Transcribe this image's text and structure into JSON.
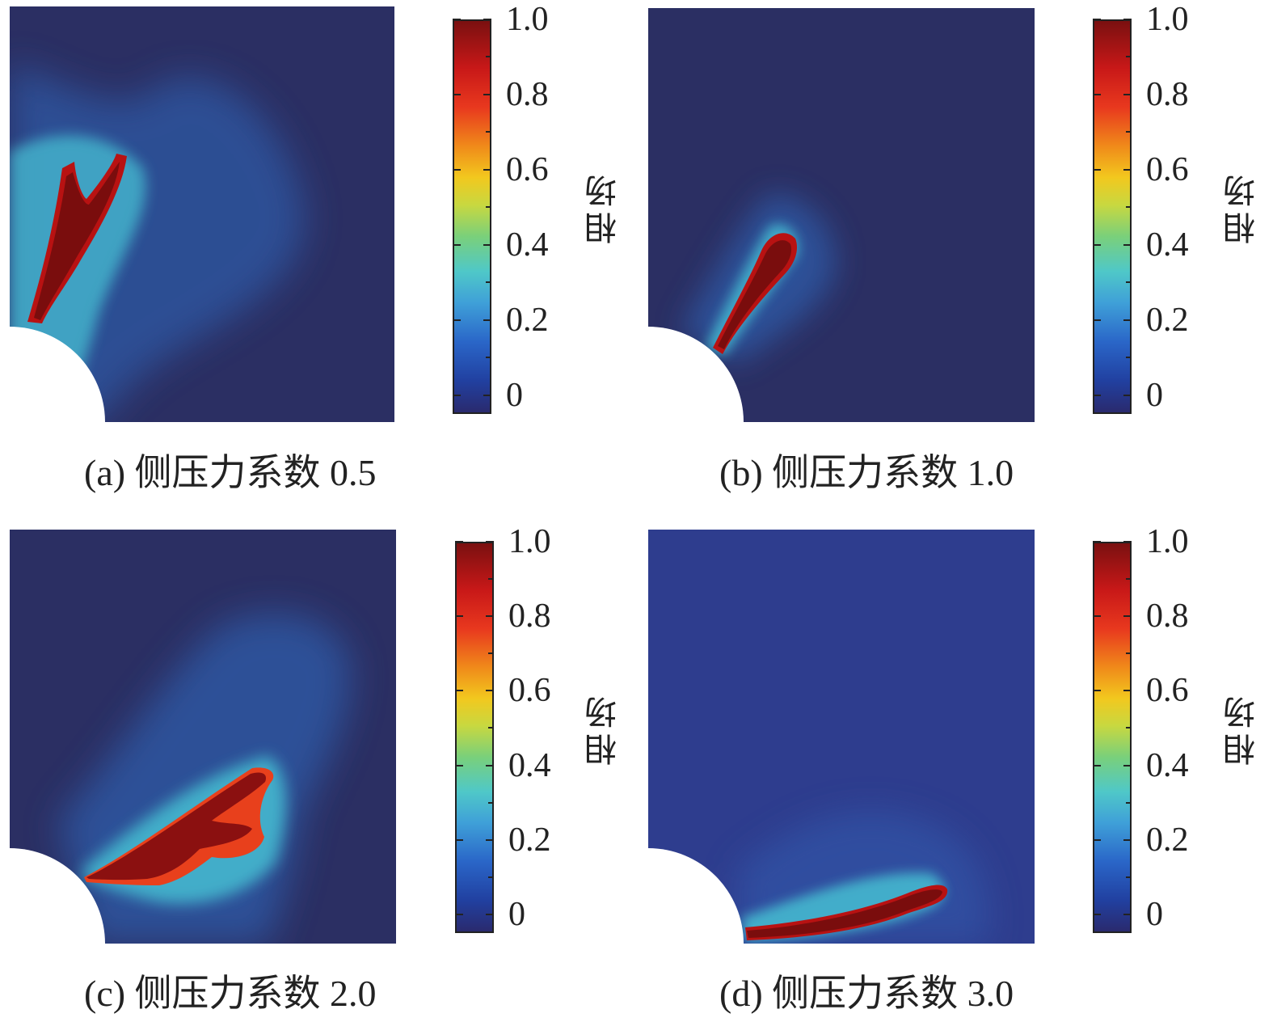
{
  "colorbar": {
    "title": "相场",
    "ticks": [
      "0",
      "0.2",
      "0.4",
      "0.6",
      "0.8",
      "1.0"
    ]
  },
  "panels": [
    {
      "id": "a",
      "caption": "(a) 侧压力系数 0.5"
    },
    {
      "id": "b",
      "caption": "(b) 侧压力系数 1.0"
    },
    {
      "id": "c",
      "caption": "(c) 侧压力系数 2.0"
    },
    {
      "id": "d",
      "caption": "(d) 侧压力系数 3.0"
    }
  ],
  "colors": {
    "background_field": "#2b2f63",
    "crack_core": "#8b1010",
    "hole": "#ffffff"
  }
}
